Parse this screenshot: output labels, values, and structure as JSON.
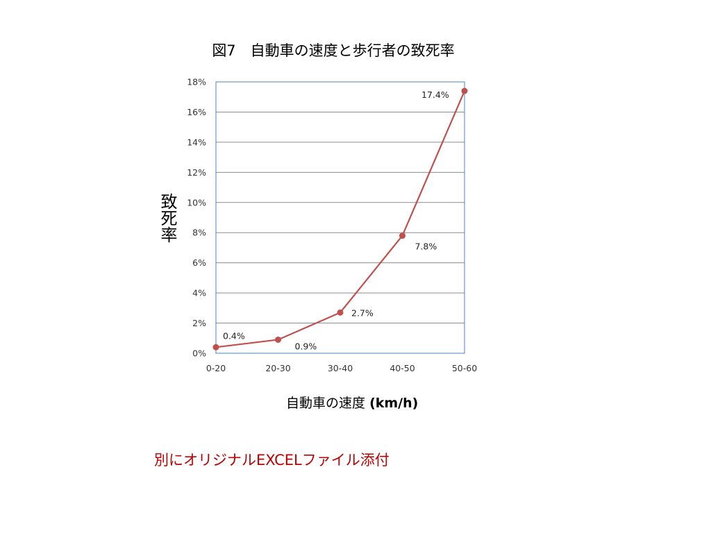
{
  "chart_data": {
    "type": "line",
    "title": "図7　自動車の速度と歩行者の致死率",
    "xlabel_main": "自動車の速度",
    "xlabel_unit": "(km/h)",
    "ylabel": "致死率",
    "categories": [
      "0-20",
      "20-30",
      "30-40",
      "40-50",
      "50-60"
    ],
    "series": [
      {
        "values": [
          0.4,
          0.9,
          2.7,
          7.8,
          17.4
        ]
      }
    ],
    "data_labels": [
      "0.4%",
      "0.9%",
      "2.7%",
      "7.8%",
      "17.4%"
    ],
    "yticks": [
      "0%",
      "2%",
      "4%",
      "6%",
      "8%",
      "10%",
      "12%",
      "14%",
      "16%",
      "18%"
    ],
    "ylim": [
      0,
      18
    ],
    "grid": true,
    "legend": "none",
    "colors": {
      "line": "#c0504d",
      "grid": "#8c8c8c",
      "frame": "#4f81bd"
    }
  },
  "note": "別にオリジナルEXCELファイル添付"
}
